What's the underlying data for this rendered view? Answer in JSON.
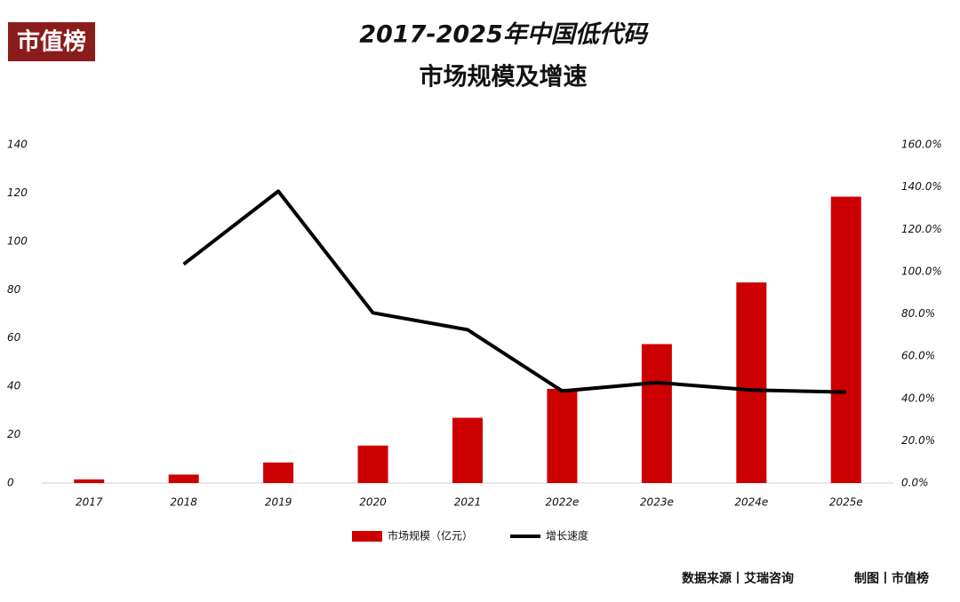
{
  "chart_data": {
    "type": "bar",
    "logo": "市值榜",
    "title": [
      "2017-2025年中国低代码",
      "市场规模及增速"
    ],
    "categories": [
      "2017",
      "2018",
      "2019",
      "2020",
      "2021",
      "2022e",
      "2023e",
      "2024e",
      "2025e"
    ],
    "series": [
      {
        "name": "市场规模（亿元）",
        "type": "bar",
        "color": "#cc0000",
        "values": [
          1.5,
          3.5,
          8.5,
          15.5,
          27,
          39,
          57.5,
          83,
          118.5
        ]
      },
      {
        "name": "增长速度",
        "type": "line",
        "axis": "y2",
        "color": "#000000",
        "values": [
          null,
          103.5,
          138,
          80.5,
          72.5,
          43.5,
          47.5,
          44,
          43
        ]
      }
    ],
    "ylim": [
      0,
      140
    ],
    "yticks": [
      0,
      20,
      40,
      60,
      80,
      100,
      120,
      140
    ],
    "y2lim": [
      0,
      160
    ],
    "y2ticks": [
      {
        "value": 0,
        "label": "0.0%"
      },
      {
        "value": 20,
        "label": "20.0%"
      },
      {
        "value": 40,
        "label": "40.0%"
      },
      {
        "value": 60,
        "label": "60.0%"
      },
      {
        "value": 80,
        "label": "80.0%"
      },
      {
        "value": 100,
        "label": "100.0%"
      },
      {
        "value": 120,
        "label": "120.0%"
      },
      {
        "value": 140,
        "label": "140.0%"
      },
      {
        "value": 160,
        "label": "160.0%"
      }
    ],
    "legend": "bottom",
    "source": "数据来源丨艾瑞咨询",
    "credit": "制图丨市值榜"
  }
}
